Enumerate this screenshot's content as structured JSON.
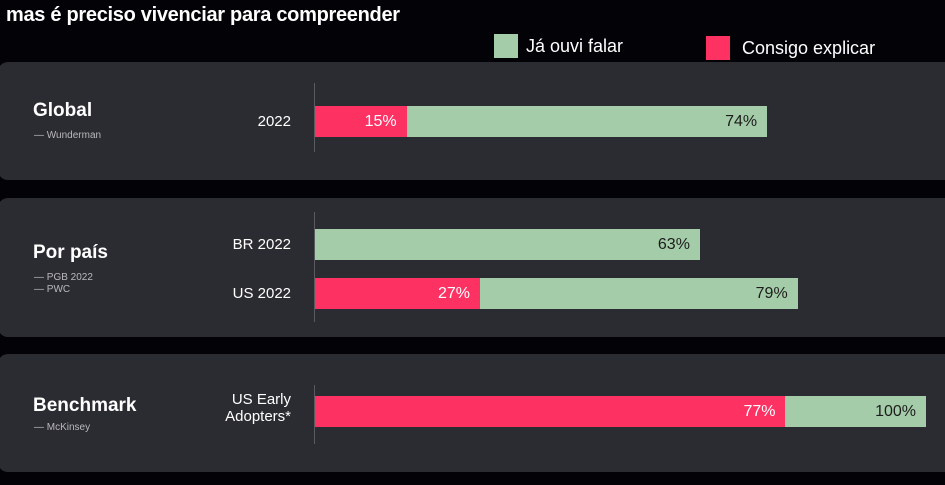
{
  "title": "mas é preciso vivenciar para compreender",
  "colors": {
    "heard": "#a5cca8",
    "explain": "#fe3163"
  },
  "chart_data": {
    "type": "bar",
    "orientation": "horizontal",
    "title": "mas é preciso vivenciar para compreender",
    "xlim": [
      0,
      100
    ],
    "legend": [
      {
        "name": "Já ouvi falar",
        "color": "#a5cca8"
      },
      {
        "name": "Consigo explicar",
        "color": "#fe3163"
      }
    ],
    "legend_position": "top-right",
    "groups": [
      {
        "title": "Global",
        "sources": [
          "— Wunderman"
        ],
        "rows": [
          {
            "label": "2022",
            "heard": 74,
            "explain": 15,
            "heard_label": "74%",
            "explain_label": "15%"
          }
        ]
      },
      {
        "title": "Por país",
        "sources": [
          "— PGB 2022",
          "— PWC"
        ],
        "rows": [
          {
            "label": "BR 2022",
            "heard": 63,
            "explain": null,
            "heard_label": "63%",
            "explain_label": null
          },
          {
            "label": "US 2022",
            "heard": 79,
            "explain": 27,
            "heard_label": "79%",
            "explain_label": "27%"
          }
        ]
      },
      {
        "title": "Benchmark",
        "sources": [
          "— McKinsey"
        ],
        "rows": [
          {
            "label": "US Early Adopters*",
            "heard": 100,
            "explain": 77,
            "heard_label": "100%",
            "explain_label": "77%"
          }
        ]
      }
    ]
  }
}
